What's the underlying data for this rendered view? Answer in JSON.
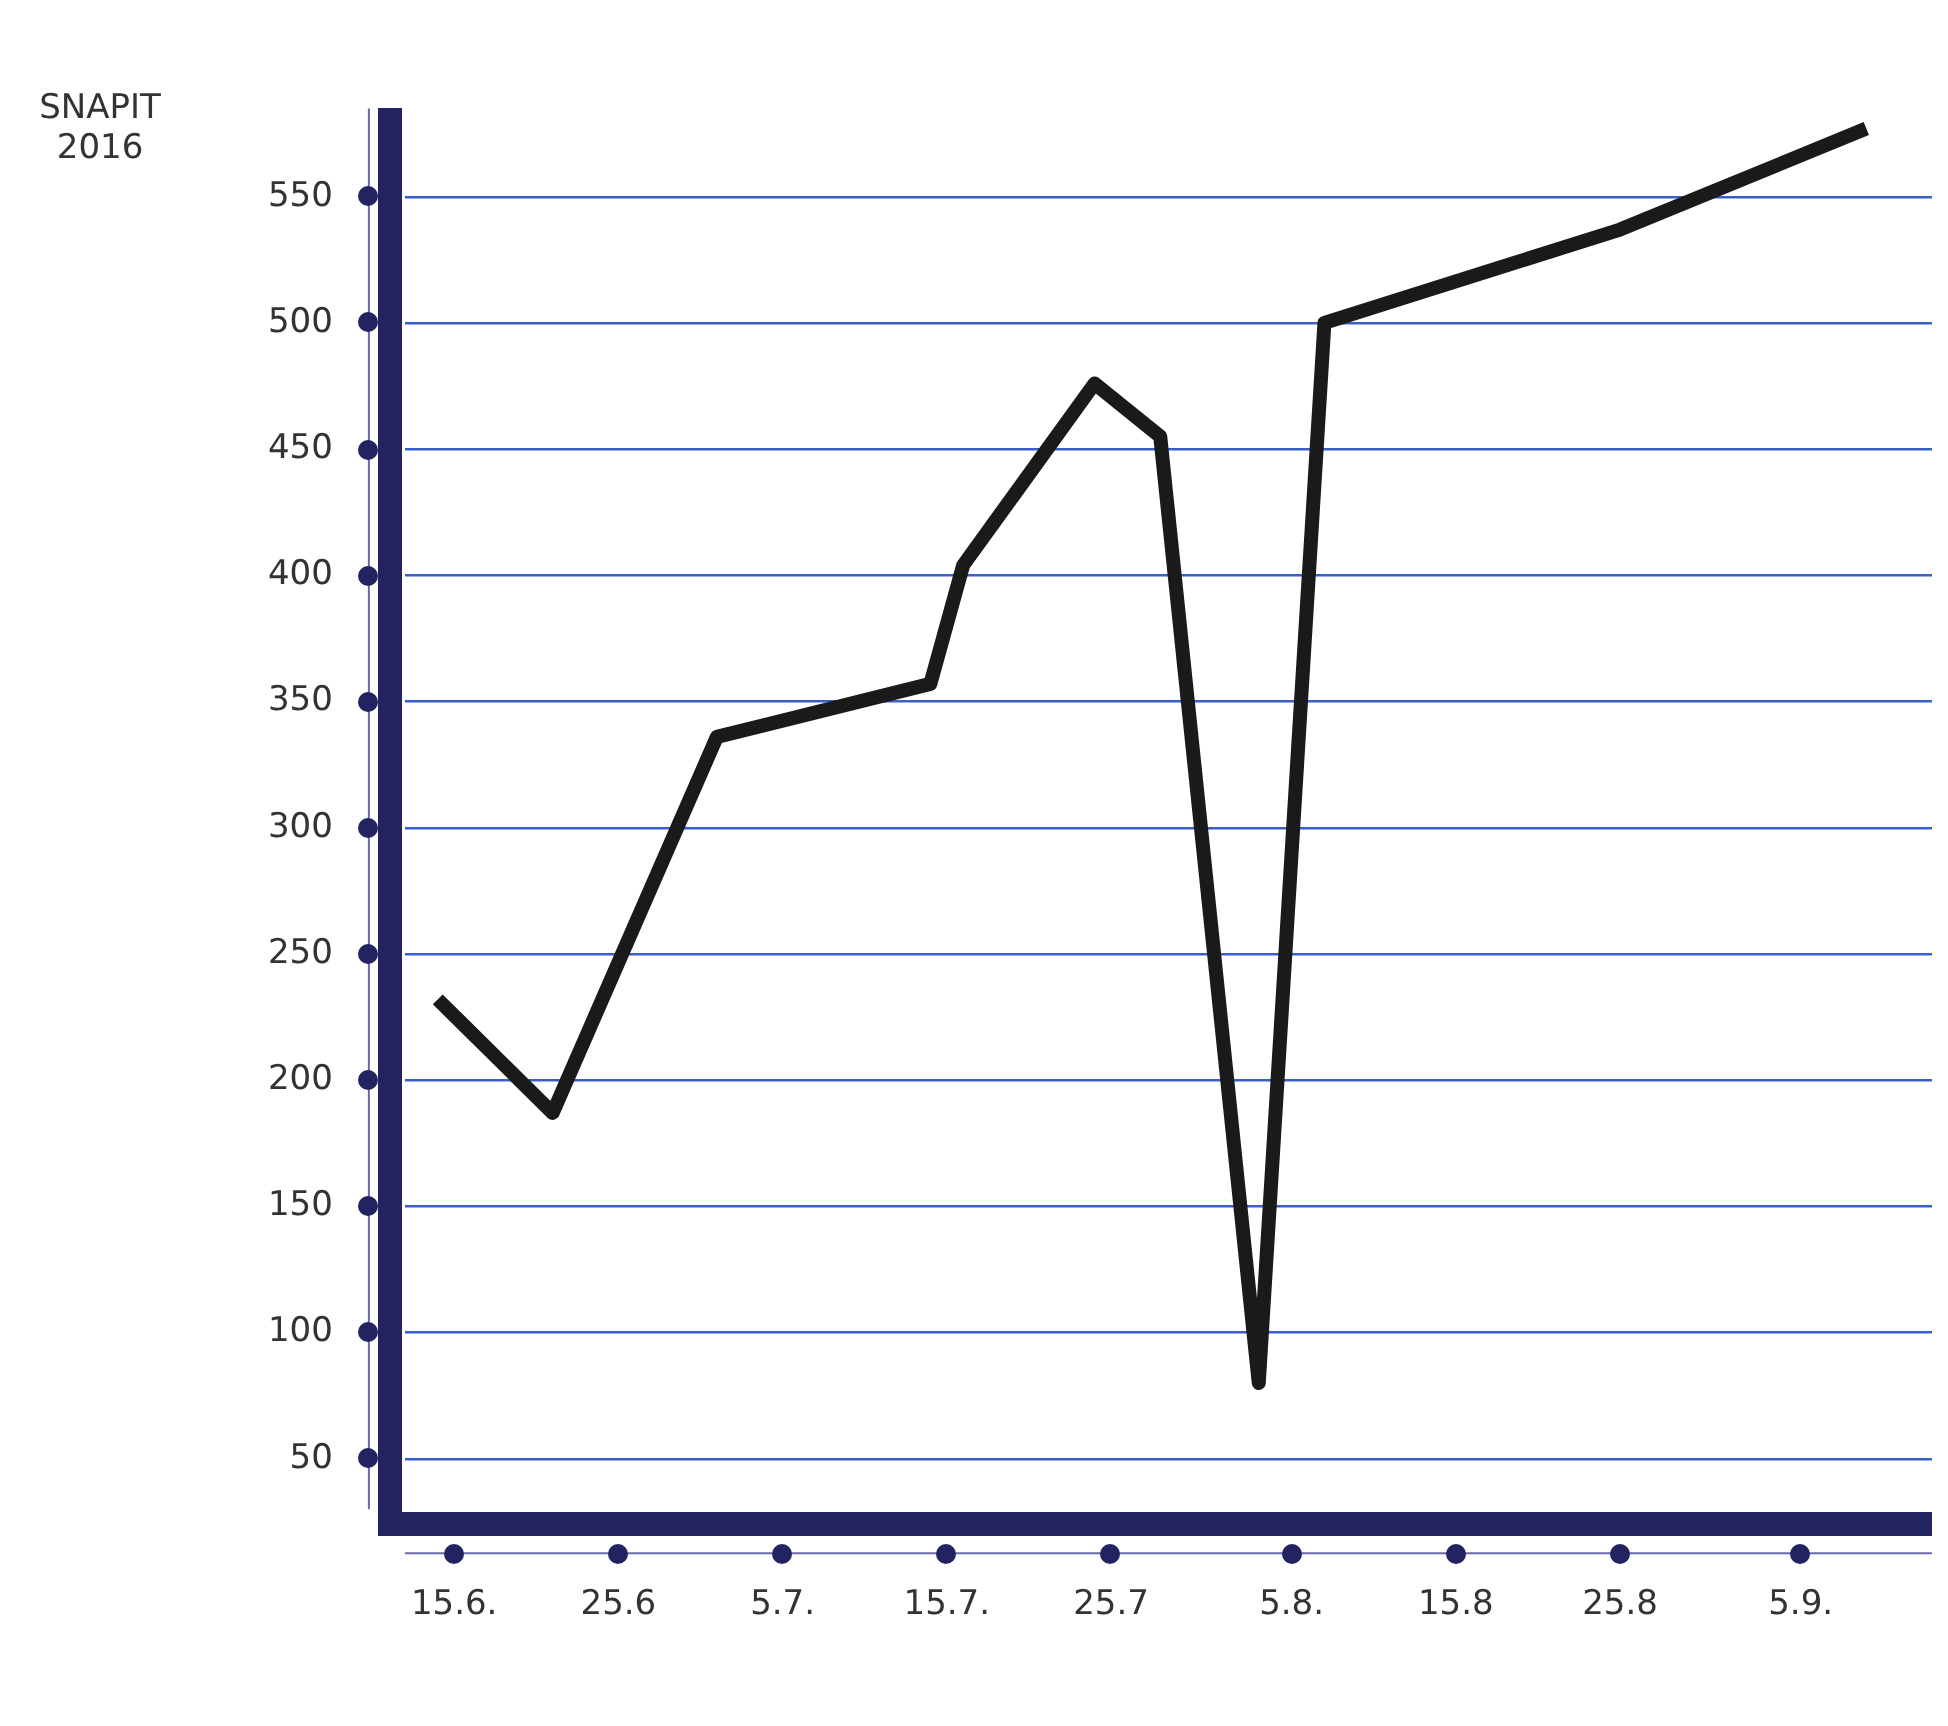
{
  "chart_data": {
    "type": "line",
    "ylabel": "SNAPIT 2016",
    "x": [
      "--06-14",
      "--06-21",
      "--07-01",
      "--07-14",
      "--07-16",
      "--07-24",
      "--07-28",
      "--08-03",
      "--08-07",
      "--08-25",
      "--09-09"
    ],
    "series": [
      {
        "color": "#1a1a1a",
        "values": [
          232,
          187,
          336,
          357,
          404,
          476,
          455,
          80,
          500,
          537,
          577
        ]
      }
    ],
    "xlim": [
      "--06-12",
      "--09-13"
    ],
    "xticks": [
      {
        "value": "--06-15",
        "label": "15.6."
      },
      {
        "value": "--06-25",
        "label": "25.6"
      },
      {
        "value": "--07-05",
        "label": "5.7."
      },
      {
        "value": "--07-15",
        "label": "15.7."
      },
      {
        "value": "--07-25",
        "label": "25.7"
      },
      {
        "value": "--08-05",
        "label": "5.8."
      },
      {
        "value": "--08-15",
        "label": "15.8"
      },
      {
        "value": "--08-25",
        "label": "25.8"
      },
      {
        "value": "--09-05",
        "label": "5.9."
      }
    ],
    "ylim": [
      30,
      585
    ],
    "yticks": [
      50,
      100,
      150,
      200,
      250,
      300,
      350,
      400,
      450,
      500,
      550
    ],
    "grid": "y",
    "legend": false,
    "marker": "none",
    "line_style": "solid"
  }
}
